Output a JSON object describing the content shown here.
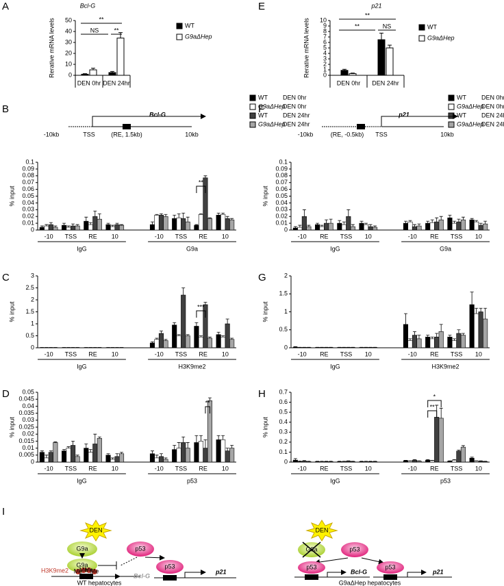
{
  "chart_data": [
    {
      "panel": "A",
      "type": "bar",
      "title": "Bcl-G",
      "y_label": "Rerative mRNA levels",
      "categories": [
        "DEN 0hr",
        "DEN 24hr"
      ],
      "series": [
        {
          "name": "WT",
          "color": "#000000",
          "values": [
            1,
            2.5
          ],
          "errors": [
            0.5,
            1
          ]
        },
        {
          "name": "G9aΔHep",
          "color": "#ffffff",
          "values": [
            5,
            34
          ],
          "errors": [
            1.5,
            5
          ]
        }
      ],
      "ylim": [
        0,
        50
      ],
      "yticks": [
        0,
        10,
        20,
        30,
        40,
        50
      ],
      "legend": "right",
      "annotations": [
        "NS",
        "**",
        "**"
      ]
    },
    {
      "panel": "E",
      "type": "bar",
      "title": "p21",
      "y_label": "Rerative mRNA levels",
      "categories": [
        "DEN 0hr",
        "DEN 24hr"
      ],
      "series": [
        {
          "name": "WT",
          "color": "#000000",
          "values": [
            0.9,
            6.5
          ],
          "errors": [
            0.2,
            1.2
          ]
        },
        {
          "name": "G9aΔHep",
          "color": "#ffffff",
          "values": [
            0.3,
            5.0
          ],
          "errors": [
            0.1,
            0.5
          ]
        }
      ],
      "ylim": [
        0,
        10
      ],
      "yticks": [
        0,
        1,
        2,
        3,
        4,
        5,
        6,
        7,
        8,
        9,
        10
      ],
      "legend": "right",
      "annotations": [
        "**",
        "**",
        "NS"
      ]
    },
    {
      "panel": "B",
      "type": "grouped-bar",
      "y_label": "% input",
      "gene_map": {
        "gene": "Bcl-G",
        "labels": [
          "-10kb",
          "TSS",
          "(RE, 1.5kb)",
          "10kb"
        ]
      },
      "categories": [
        "-10",
        "TSS",
        "RE",
        "10",
        "-10",
        "TSS",
        "RE",
        "10"
      ],
      "groups": [
        "IgG",
        "G9a"
      ],
      "series": [
        {
          "name": "WT",
          "condition": "DEN 0hr",
          "color": "#000000",
          "values": [
            0.004,
            0.007,
            0.013,
            0.008,
            0.008,
            0.017,
            0.007,
            0.022
          ],
          "errors": [
            0.002,
            0.003,
            0.006,
            0.002,
            0.004,
            0.005,
            0.001,
            0.003
          ]
        },
        {
          "name": "G9aΔHep",
          "condition": "DEN 0hr",
          "color": "#ffffff",
          "values": [
            0.006,
            0.004,
            0.008,
            0.005,
            0.022,
            0.018,
            0.023,
            0.023
          ],
          "errors": [
            0.002,
            0.002,
            0.003,
            0.002,
            0.001,
            0.006,
            0.001,
            0.002
          ]
        },
        {
          "name": "WT",
          "condition": "DEN 24hr",
          "color": "#404040",
          "values": [
            0.008,
            0.006,
            0.02,
            0.008,
            0.022,
            0.017,
            0.077,
            0.017
          ],
          "errors": [
            0.003,
            0.003,
            0.008,
            0.002,
            0.002,
            0.008,
            0.003,
            0.003
          ]
        },
        {
          "name": "G9aΔHep",
          "condition": "DEN 24hr",
          "color": "#a6a6a6",
          "values": [
            0.004,
            0.006,
            0.016,
            0.007,
            0.02,
            0.012,
            0.017,
            0.015
          ],
          "errors": [
            0.002,
            0.002,
            0.008,
            0.001,
            0.003,
            0.007,
            0.001,
            0.002
          ]
        }
      ],
      "ylim": [
        0,
        0.1
      ],
      "yticks": [
        0,
        0.01,
        0.02,
        0.03,
        0.04,
        0.05,
        0.06,
        0.07,
        0.08,
        0.09,
        0.1
      ],
      "legend": "upper right",
      "annotations": [
        "**"
      ]
    },
    {
      "panel": "C",
      "type": "grouped-bar",
      "y_label": "% input",
      "categories": [
        "-10",
        "TSS",
        "RE",
        "10",
        "-10",
        "TSS",
        "RE",
        "10"
      ],
      "groups": [
        "IgG",
        "H3K9me2"
      ],
      "series": [
        {
          "color": "#000000",
          "values": [
            0.01,
            0.01,
            0.01,
            0.01,
            0.2,
            0.95,
            0.9,
            0.55
          ],
          "errors": [
            0.005,
            0.005,
            0.005,
            0.005,
            0.05,
            0.1,
            0.15,
            0.1
          ]
        },
        {
          "color": "#ffffff",
          "values": [
            0.01,
            0.01,
            0.01,
            0.01,
            0.35,
            0.5,
            0.45,
            0.45
          ],
          "errors": [
            0.005,
            0.005,
            0.005,
            0.005,
            0.05,
            0.05,
            0.05,
            0.05
          ]
        },
        {
          "color": "#404040",
          "values": [
            0.01,
            0.01,
            0.01,
            0.01,
            0.6,
            2.2,
            1.8,
            1.0
          ],
          "errors": [
            0.005,
            0.005,
            0.005,
            0.005,
            0.1,
            0.3,
            0.1,
            0.2
          ]
        },
        {
          "color": "#a6a6a6",
          "values": [
            0.01,
            0.01,
            0.01,
            0.01,
            0.3,
            0.5,
            0.4,
            0.35
          ],
          "errors": [
            0.005,
            0.005,
            0.005,
            0.005,
            0.05,
            0.05,
            0.05,
            0.05
          ]
        }
      ],
      "ylim": [
        0,
        3
      ],
      "yticks": [
        0,
        0.5,
        1,
        1.5,
        2,
        2.5,
        3
      ],
      "annotations": [
        "***"
      ]
    },
    {
      "panel": "D",
      "type": "grouped-bar",
      "y_label": "% input",
      "categories": [
        "-10",
        "TSS",
        "RE",
        "10",
        "-10",
        "TSS",
        "RE",
        "10"
      ],
      "groups": [
        "IgG",
        "p53"
      ],
      "series": [
        {
          "color": "#000000",
          "values": [
            0.007,
            0.008,
            0.01,
            0.005,
            0.006,
            0.009,
            0.014,
            0.016
          ],
          "errors": [
            0.001,
            0.001,
            0.003,
            0.001,
            0.002,
            0.003,
            0.005,
            0.003
          ]
        },
        {
          "color": "#ffffff",
          "values": [
            0.003,
            0.01,
            0.007,
            0.002,
            0.003,
            0.01,
            0.015,
            0.016
          ],
          "errors": [
            0.002,
            0.001,
            0.002,
            0.001,
            0.002,
            0.004,
            0.004,
            0.003
          ]
        },
        {
          "color": "#404040",
          "values": [
            0.007,
            0.012,
            0.013,
            0.004,
            0.004,
            0.014,
            0.01,
            0.008
          ],
          "errors": [
            0.001,
            0.003,
            0.007,
            0.002,
            0.002,
            0.004,
            0.006,
            0.002
          ]
        },
        {
          "color": "#a6a6a6",
          "values": [
            0.014,
            0.004,
            0.017,
            0.006,
            0.002,
            0.01,
            0.044,
            0.01
          ],
          "errors": [
            0.0005,
            0.001,
            0.001,
            0.001,
            0.001,
            0.004,
            0.002,
            0.002
          ]
        }
      ],
      "ylim": [
        0,
        0.05
      ],
      "yticks": [
        0,
        0.005,
        0.01,
        0.015,
        0.02,
        0.025,
        0.03,
        0.035,
        0.04,
        0.045,
        0.05
      ],
      "annotations": [
        "**"
      ]
    },
    {
      "panel": "F",
      "type": "grouped-bar",
      "y_label": "% input",
      "gene_map": {
        "gene": "p21",
        "labels": [
          "-10kb",
          "(RE, -0.5kb)",
          "TSS",
          "10kb"
        ]
      },
      "categories": [
        "-10",
        "RE",
        "TSS",
        "10",
        "-10",
        "RE",
        "TSS",
        "10"
      ],
      "groups": [
        "IgG",
        "G9a"
      ],
      "series": [
        {
          "name": "WT",
          "condition": "DEN 0hr",
          "color": "#000000",
          "values": [
            0.003,
            0.008,
            0.01,
            0.01,
            0.01,
            0.01,
            0.018,
            0.015
          ],
          "errors": [
            0.002,
            0.002,
            0.004,
            0.003,
            0.003,
            0.003,
            0.004,
            0.002
          ]
        },
        {
          "name": "G9aΔHep",
          "condition": "DEN 0hr",
          "color": "#ffffff",
          "values": [
            0.004,
            0.005,
            0.008,
            0.008,
            0.012,
            0.011,
            0.01,
            0.012
          ],
          "errors": [
            0.003,
            0.002,
            0.004,
            0.002,
            0.002,
            0.004,
            0.003,
            0.002
          ]
        },
        {
          "name": "WT",
          "condition": "DEN 24hr",
          "color": "#404040",
          "values": [
            0.02,
            0.01,
            0.02,
            0.005,
            0.005,
            0.012,
            0.012,
            0.007
          ],
          "errors": [
            0.01,
            0.005,
            0.01,
            0.003,
            0.003,
            0.006,
            0.004,
            0.003
          ]
        },
        {
          "name": "G9aΔHep",
          "condition": "DEN 24hr",
          "color": "#a6a6a6",
          "values": [
            0.005,
            0.01,
            0.005,
            0.004,
            0.006,
            0.015,
            0.015,
            0.009
          ],
          "errors": [
            0.002,
            0.006,
            0.003,
            0.002,
            0.003,
            0.005,
            0.004,
            0.004
          ]
        }
      ],
      "ylim": [
        0,
        0.1
      ],
      "yticks": [
        0,
        0.01,
        0.02,
        0.03,
        0.04,
        0.05,
        0.06,
        0.07,
        0.08,
        0.09,
        0.1
      ],
      "legend": "upper right",
      "annotations": []
    },
    {
      "panel": "G",
      "type": "grouped-bar",
      "y_label": "% input",
      "categories": [
        "-10",
        "RE",
        "TSS",
        "10",
        "-10",
        "RE",
        "TSS",
        "10"
      ],
      "groups": [
        "IgG",
        "H3K9me2"
      ],
      "series": [
        {
          "color": "#000000",
          "values": [
            0.02,
            0.01,
            0.01,
            0.01,
            0.65,
            0.3,
            0.3,
            1.2
          ],
          "errors": [
            0.01,
            0.005,
            0.005,
            0.005,
            0.3,
            0.05,
            0.05,
            0.35
          ]
        },
        {
          "color": "#ffffff",
          "values": [
            0.01,
            0.01,
            0.01,
            0.01,
            0.2,
            0.25,
            0.2,
            0.95
          ],
          "errors": [
            0.005,
            0.005,
            0.005,
            0.005,
            0.05,
            0.05,
            0.05,
            0.15
          ]
        },
        {
          "color": "#404040",
          "values": [
            0.01,
            0.01,
            0.01,
            0.01,
            0.35,
            0.3,
            0.4,
            1.0
          ],
          "errors": [
            0.005,
            0.005,
            0.005,
            0.005,
            0.1,
            0.1,
            0.1,
            0.1
          ]
        },
        {
          "color": "#a6a6a6",
          "values": [
            0.01,
            0.01,
            0.01,
            0.01,
            0.25,
            0.45,
            0.35,
            0.8
          ],
          "errors": [
            0.005,
            0.005,
            0.005,
            0.005,
            0.1,
            0.2,
            0.05,
            0.3
          ]
        }
      ],
      "ylim": [
        0,
        2
      ],
      "yticks": [
        0,
        0.5,
        1,
        1.5,
        2
      ],
      "annotations": []
    },
    {
      "panel": "H",
      "type": "grouped-bar",
      "y_label": "% input",
      "categories": [
        "-10",
        "RE",
        "TSS",
        "10",
        "-10",
        "RE",
        "TSS",
        "10"
      ],
      "groups": [
        "IgG",
        "p53"
      ],
      "series": [
        {
          "color": "#000000",
          "values": [
            0.02,
            0.005,
            0.005,
            0.005,
            0.015,
            0.02,
            0.01,
            0.04
          ],
          "errors": [
            0.015,
            0.003,
            0.003,
            0.003,
            0.003,
            0.005,
            0.003,
            0.01
          ]
        },
        {
          "color": "#ffffff",
          "values": [
            0.005,
            0.005,
            0.005,
            0.005,
            0.01,
            0.015,
            0.02,
            0.01
          ],
          "errors": [
            0.005,
            0.003,
            0.003,
            0.003,
            0.003,
            0.003,
            0.005,
            0.003
          ]
        },
        {
          "color": "#404040",
          "values": [
            0.01,
            0.005,
            0.01,
            0.005,
            0.02,
            0.45,
            0.11,
            0.01
          ],
          "errors": [
            0.005,
            0.003,
            0.003,
            0.003,
            0.005,
            0.12,
            0.01,
            0.003
          ]
        },
        {
          "color": "#a6a6a6",
          "values": [
            0.005,
            0.005,
            0.005,
            0.005,
            0.01,
            0.44,
            0.15,
            0.005
          ],
          "errors": [
            0.003,
            0.003,
            0.003,
            0.003,
            0.003,
            0.1,
            0.015,
            0.003
          ]
        }
      ],
      "ylim": [
        0,
        0.7
      ],
      "yticks": [
        0,
        0.1,
        0.2,
        0.3,
        0.4,
        0.5,
        0.6,
        0.7
      ],
      "annotations": [
        "**",
        "*"
      ]
    }
  ],
  "diagram": {
    "panel": "I",
    "left": {
      "stimulus": "DEN",
      "nodes": [
        "G9a",
        "p53",
        "G9a",
        "p53"
      ],
      "mark": "H3K9me2",
      "methyl": [
        "Me",
        "Me",
        "Me",
        "Me"
      ],
      "genes": [
        "Bcl-G",
        "p21"
      ],
      "caption": "WT hepatocytes"
    },
    "right": {
      "stimulus": "DEN",
      "nodes": [
        "G9a",
        "p53",
        "p53",
        "p53"
      ],
      "genes": [
        "Bcl-G",
        "p21"
      ],
      "caption": "G9aΔHep hepatocytes"
    }
  }
}
